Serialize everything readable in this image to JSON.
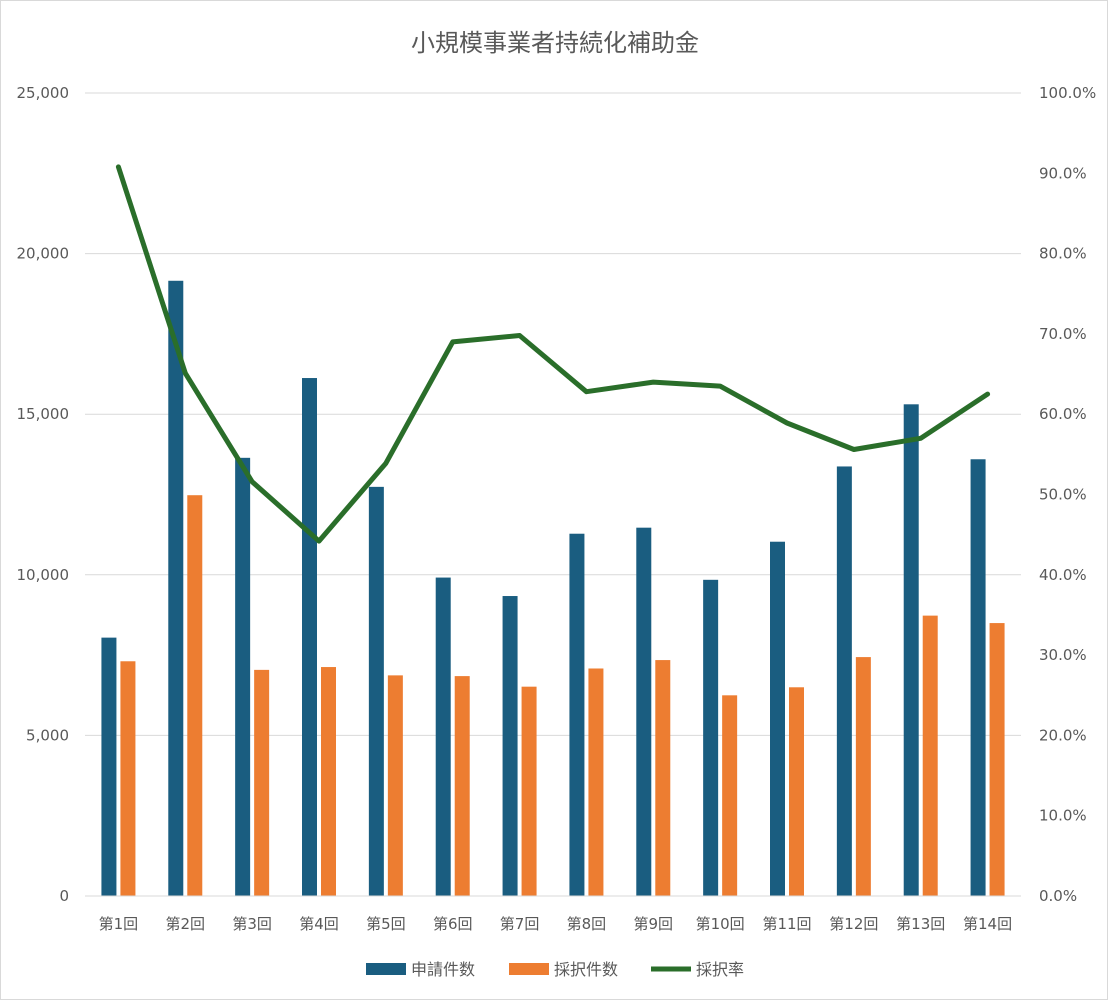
{
  "chart_data": {
    "type": "bar",
    "title": "小規模事業者持続化補助金",
    "categories": [
      "第1回",
      "第2回",
      "第3回",
      "第4回",
      "第5回",
      "第6回",
      "第7回",
      "第8回",
      "第9回",
      "第10回",
      "第11回",
      "第12回",
      "第13回",
      "第14回"
    ],
    "series": [
      {
        "name": "申請件数",
        "type": "bar",
        "axis": "left",
        "color": "#1a5d80",
        "values": [
          8044,
          19154,
          13642,
          16126,
          12738,
          9914,
          9339,
          11279,
          11467,
          9844,
          11030,
          13373,
          15308,
          13597
        ]
      },
      {
        "name": "採択件数",
        "type": "bar",
        "axis": "left",
        "color": "#ed7d31",
        "values": [
          7308,
          12478,
          7040,
          7128,
          6869,
          6846,
          6517,
          7083,
          7345,
          6248,
          6498,
          7438,
          8729,
          8497
        ]
      },
      {
        "name": "採択率",
        "type": "line",
        "axis": "right",
        "color": "#2a6e2a",
        "values": [
          90.8,
          65.1,
          51.6,
          44.2,
          53.9,
          69.0,
          69.8,
          62.8,
          64.0,
          63.5,
          58.9,
          55.6,
          57.0,
          62.5
        ]
      }
    ],
    "y_left": {
      "min": 0,
      "max": 25000,
      "step": 5000,
      "tick_labels": [
        "0",
        "5,000",
        "10,000",
        "15,000",
        "20,000",
        "25,000"
      ]
    },
    "y_right": {
      "min": 0,
      "max": 100,
      "step": 10,
      "tick_labels": [
        "0.0%",
        "10.0%",
        "20.0%",
        "30.0%",
        "40.0%",
        "50.0%",
        "60.0%",
        "70.0%",
        "80.0%",
        "90.0%",
        "100.0%"
      ]
    },
    "grid": true,
    "legend_position": "bottom"
  }
}
